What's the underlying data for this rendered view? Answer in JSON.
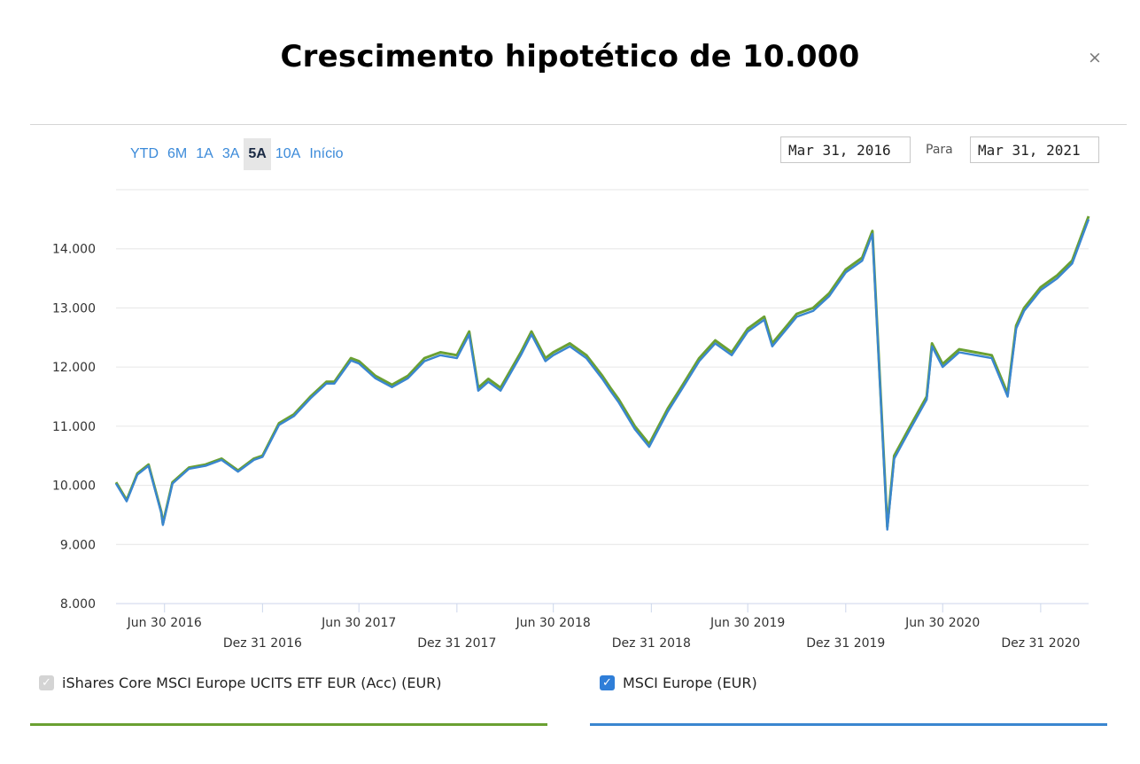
{
  "header": {
    "title": "Crescimento hipotético de 10.000",
    "close_symbol": "×"
  },
  "range_selector": {
    "buttons": [
      "YTD",
      "6M",
      "1A",
      "3A",
      "5A",
      "10A",
      "Início"
    ],
    "active": "5A"
  },
  "date_range": {
    "from": "Mar 31, 2016",
    "to_label": "Para",
    "to": "Mar 31, 2021"
  },
  "legend": [
    {
      "label": "iShares Core MSCI Europe UCITS ETF EUR (Acc) (EUR)",
      "color": "#6aa032",
      "checked": true,
      "disabled": true
    },
    {
      "label": "MSCI Europe (EUR)",
      "color": "#3a86d0",
      "checked": true,
      "disabled": false
    }
  ],
  "chart_data": {
    "type": "line",
    "x_range": [
      "2016-03-31",
      "2021-03-31"
    ],
    "ylim": [
      8000,
      15000
    ],
    "y_ticks": [
      8000,
      9000,
      10000,
      11000,
      12000,
      13000,
      14000
    ],
    "y_tick_labels": [
      "8.000",
      "9.000",
      "10.000",
      "11.000",
      "12.000",
      "13.000",
      "14.000"
    ],
    "x_ticks": [
      "2016-06-30",
      "2016-12-31",
      "2017-06-30",
      "2017-12-31",
      "2018-06-30",
      "2018-12-31",
      "2019-06-30",
      "2019-12-31",
      "2020-06-30",
      "2020-12-31"
    ],
    "x_tick_labels": [
      "Jun 30 2016",
      "Dez 31 2016",
      "Jun 30 2017",
      "Dez 31 2017",
      "Jun 30 2018",
      "Dez 31 2018",
      "Jun 30 2019",
      "Dez 31 2019",
      "Jun 30 2020",
      "Dez 31 2020"
    ],
    "grid": true,
    "x": [
      "2016-03-31",
      "2016-04-20",
      "2016-05-10",
      "2016-05-31",
      "2016-06-24",
      "2016-06-27",
      "2016-07-15",
      "2016-08-15",
      "2016-09-15",
      "2016-10-15",
      "2016-11-15",
      "2016-12-15",
      "2016-12-31",
      "2017-01-31",
      "2017-02-28",
      "2017-03-31",
      "2017-04-30",
      "2017-05-15",
      "2017-06-15",
      "2017-06-30",
      "2017-07-31",
      "2017-08-31",
      "2017-09-30",
      "2017-10-31",
      "2017-11-30",
      "2017-12-31",
      "2018-01-23",
      "2018-02-09",
      "2018-02-28",
      "2018-03-23",
      "2018-04-30",
      "2018-05-20",
      "2018-06-15",
      "2018-06-30",
      "2018-07-31",
      "2018-08-31",
      "2018-09-30",
      "2018-10-15",
      "2018-10-31",
      "2018-11-30",
      "2018-12-27",
      "2019-01-31",
      "2019-02-28",
      "2019-03-31",
      "2019-04-30",
      "2019-05-31",
      "2019-06-30",
      "2019-07-31",
      "2019-08-15",
      "2019-09-30",
      "2019-10-31",
      "2019-11-30",
      "2019-12-31",
      "2020-01-31",
      "2020-02-19",
      "2020-03-18",
      "2020-03-31",
      "2020-04-30",
      "2020-05-31",
      "2020-06-10",
      "2020-06-30",
      "2020-07-31",
      "2020-08-31",
      "2020-09-30",
      "2020-10-30",
      "2020-11-15",
      "2020-11-30",
      "2020-12-31",
      "2021-01-31",
      "2021-02-28",
      "2021-03-31"
    ],
    "series": [
      {
        "name": "iShares Core MSCI Europe UCITS ETF EUR (Acc) (EUR)",
        "values": [
          10050,
          9750,
          10200,
          10350,
          9550,
          9350,
          10050,
          10300,
          10350,
          10450,
          10250,
          10450,
          10500,
          11050,
          11200,
          11500,
          11750,
          11750,
          12150,
          12100,
          11850,
          11700,
          11850,
          12150,
          12250,
          12200,
          12600,
          11650,
          11800,
          11650,
          12250,
          12600,
          12150,
          12250,
          12400,
          12200,
          11850,
          11650,
          11450,
          11000,
          10700,
          11300,
          11700,
          12150,
          12450,
          12250,
          12650,
          12850,
          12400,
          12900,
          13000,
          13250,
          13650,
          13850,
          14300,
          9300,
          10500,
          11000,
          11500,
          12400,
          12050,
          12300,
          12250,
          12200,
          11550,
          12700,
          13000,
          13350,
          13550,
          13800,
          14550
        ]
      },
      {
        "name": "MSCI Europe (EUR)",
        "values": [
          10030,
          9730,
          10180,
          10330,
          9530,
          9330,
          10030,
          10280,
          10330,
          10430,
          10230,
          10430,
          10480,
          11020,
          11170,
          11470,
          11720,
          11720,
          12110,
          12060,
          11810,
          11660,
          11810,
          12100,
          12200,
          12150,
          12550,
          11600,
          11750,
          11600,
          12200,
          12550,
          12100,
          12200,
          12350,
          12150,
          11800,
          11600,
          11400,
          10950,
          10650,
          11250,
          11650,
          12100,
          12400,
          12200,
          12600,
          12800,
          12350,
          12850,
          12950,
          13200,
          13600,
          13800,
          14250,
          9250,
          10450,
          10950,
          11450,
          12350,
          12000,
          12250,
          12200,
          12150,
          11500,
          12650,
          12950,
          13300,
          13500,
          13750,
          14500
        ]
      }
    ]
  }
}
